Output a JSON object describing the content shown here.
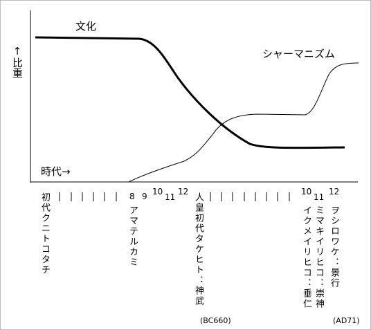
{
  "y_label": "↑比重",
  "x_label": "時代→",
  "curves": [
    {
      "label": "文化"
    },
    {
      "label": "シャーマニズム"
    }
  ],
  "generations": [
    {
      "name": "初代クニトコタチ"
    },
    {
      "number": "8",
      "name": "アマテルカミ"
    },
    {
      "number": "9"
    },
    {
      "number": "10"
    },
    {
      "number": "11"
    },
    {
      "number": "12"
    },
    {
      "name": "人皇初代タケヒト：神武",
      "date": "(BC660)"
    },
    {
      "number": "10",
      "name": "イクメイリヒコ：垂仁"
    },
    {
      "number": "11",
      "name": "ミマキイリヒコ：崇神"
    },
    {
      "number": "12",
      "name": "ヲシロワケ：景行",
      "date": "(AD71)"
    }
  ]
}
